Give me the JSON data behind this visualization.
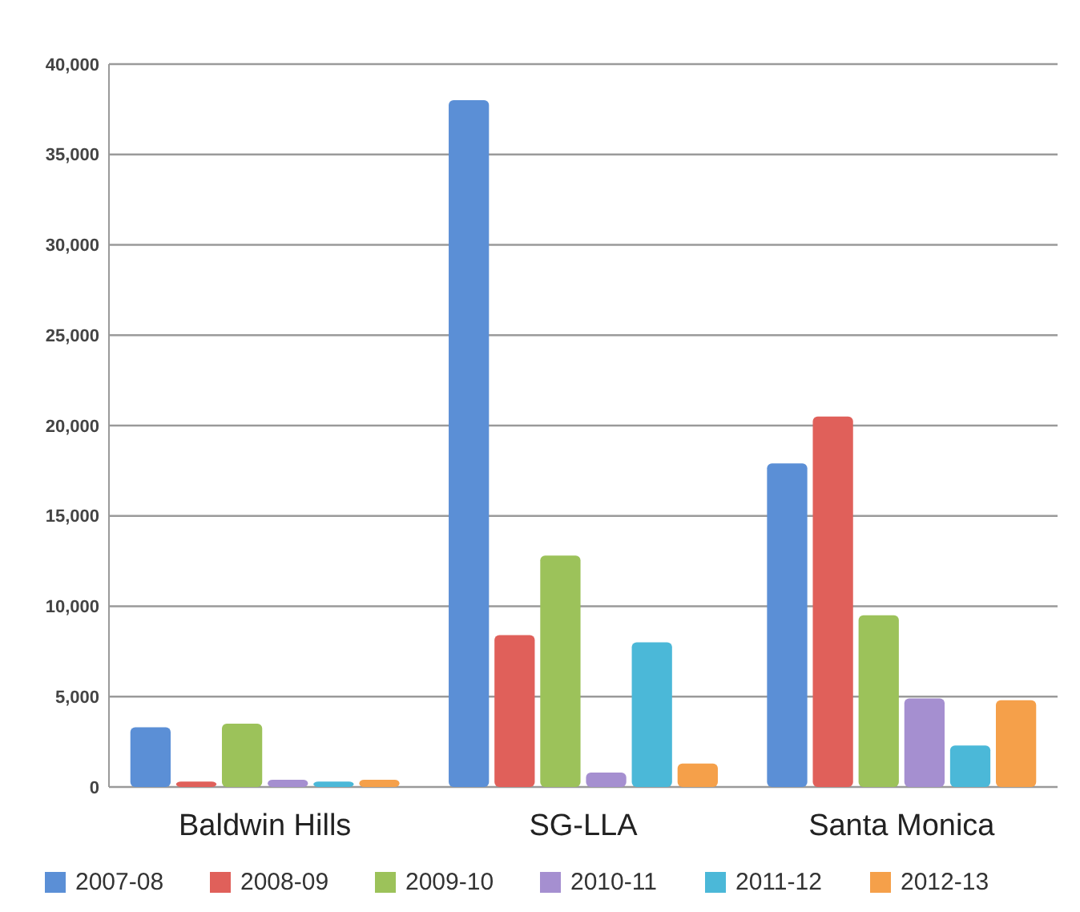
{
  "chart_data": {
    "type": "bar",
    "categories": [
      "Baldwin Hills",
      "SG-LLA",
      "Santa Monica"
    ],
    "series": [
      {
        "name": "2007-08",
        "color": "#5b8fd6",
        "values": [
          3300,
          38000,
          17900
        ]
      },
      {
        "name": "2008-09",
        "color": "#e0605a",
        "values": [
          300,
          8400,
          20500
        ]
      },
      {
        "name": "2009-10",
        "color": "#9cc25a",
        "values": [
          3500,
          12800,
          9500
        ]
      },
      {
        "name": "2010-11",
        "color": "#a58fd0",
        "values": [
          400,
          800,
          4900
        ]
      },
      {
        "name": "2011-12",
        "color": "#4bb8d8",
        "values": [
          300,
          8000,
          2300
        ]
      },
      {
        "name": "2012-13",
        "color": "#f5a04a",
        "values": [
          400,
          1300,
          4800
        ]
      }
    ],
    "ylim": [
      0,
      40000
    ],
    "yticks": [
      {
        "value": 0,
        "label": "0"
      },
      {
        "value": 5000,
        "label": "5,000"
      },
      {
        "value": 10000,
        "label": "10,000"
      },
      {
        "value": 15000,
        "label": "15,000"
      },
      {
        "value": 20000,
        "label": "20,000"
      },
      {
        "value": 25000,
        "label": "25,000"
      },
      {
        "value": 30000,
        "label": "30,000"
      },
      {
        "value": 35000,
        "label": "35,000"
      },
      {
        "value": 40000,
        "label": "40,000"
      }
    ],
    "grid": "y",
    "legend": "bottom"
  }
}
